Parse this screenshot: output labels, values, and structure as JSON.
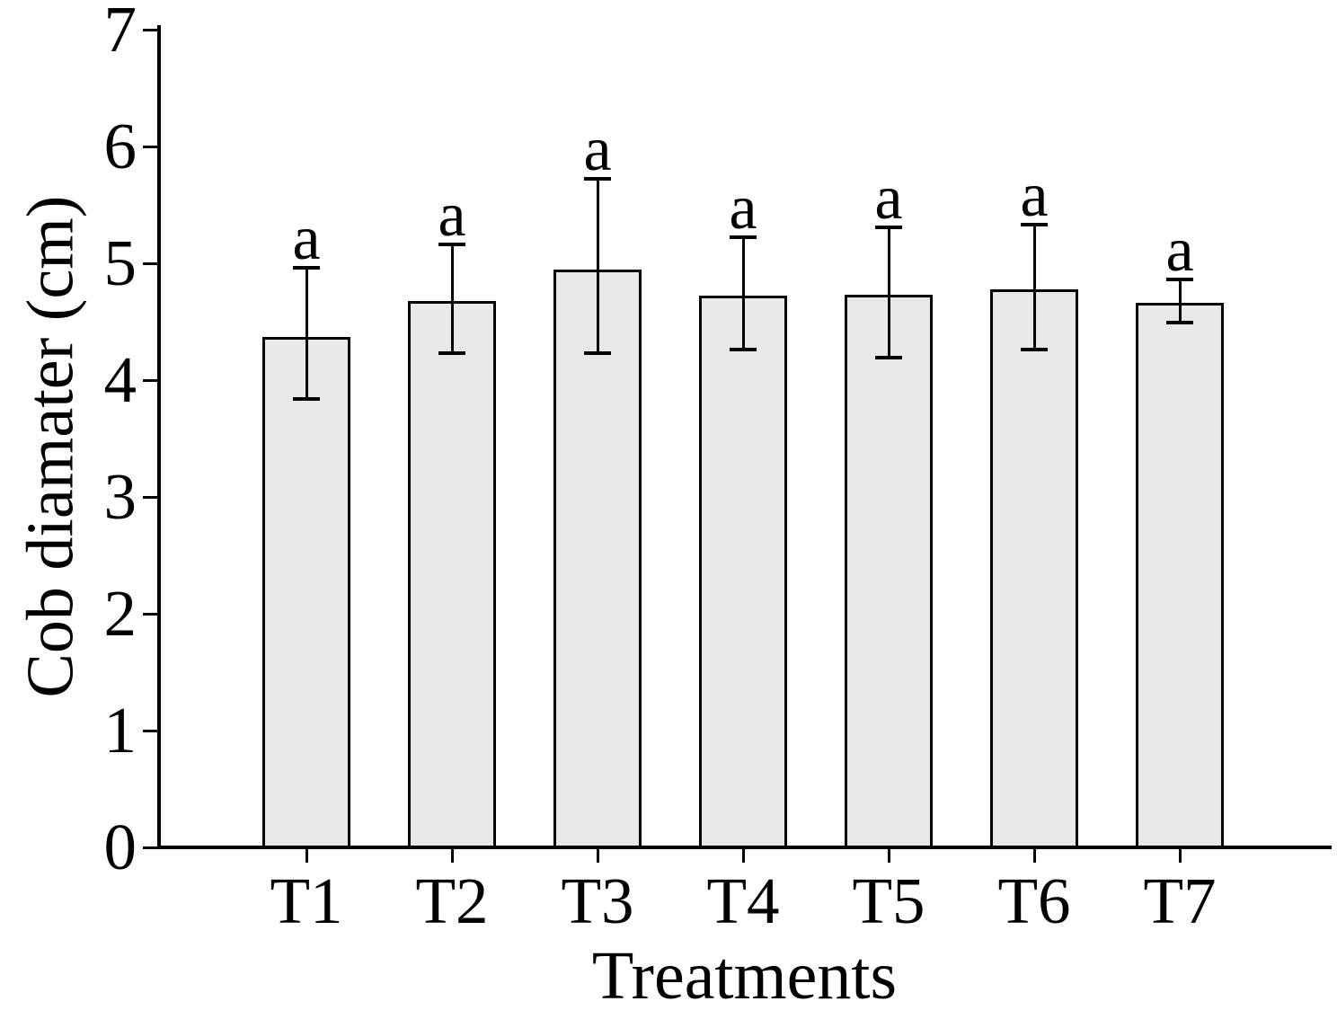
{
  "figure": {
    "background": "#ffffff",
    "bar_fill": "#e8e8e8",
    "bar_border": "#000000",
    "axis_color": "#000000",
    "text_color": "#000000"
  },
  "chart_data": {
    "type": "bar",
    "title": "",
    "xlabel": "Treatments",
    "ylabel": "Cob diamater (cm)",
    "categories": [
      "T1",
      "T2",
      "T3",
      "T4",
      "T5",
      "T6",
      "T7"
    ],
    "values": [
      4.37,
      4.68,
      4.95,
      4.72,
      4.73,
      4.78,
      4.66
    ],
    "error_upper": [
      4.96,
      5.16,
      5.72,
      5.22,
      5.31,
      5.33,
      4.86
    ],
    "error_lower": [
      3.84,
      4.23,
      4.23,
      4.26,
      4.19,
      4.26,
      4.49
    ],
    "sig_letters": [
      "a",
      "a",
      "a",
      "a",
      "a",
      "a",
      "a"
    ],
    "ylim": [
      0,
      7
    ],
    "yticks": [
      0,
      1,
      2,
      3,
      4,
      5,
      6,
      7
    ],
    "grid": false,
    "legend": null,
    "error_bar_style": "caps",
    "bar_color": "#e8e8e8"
  }
}
